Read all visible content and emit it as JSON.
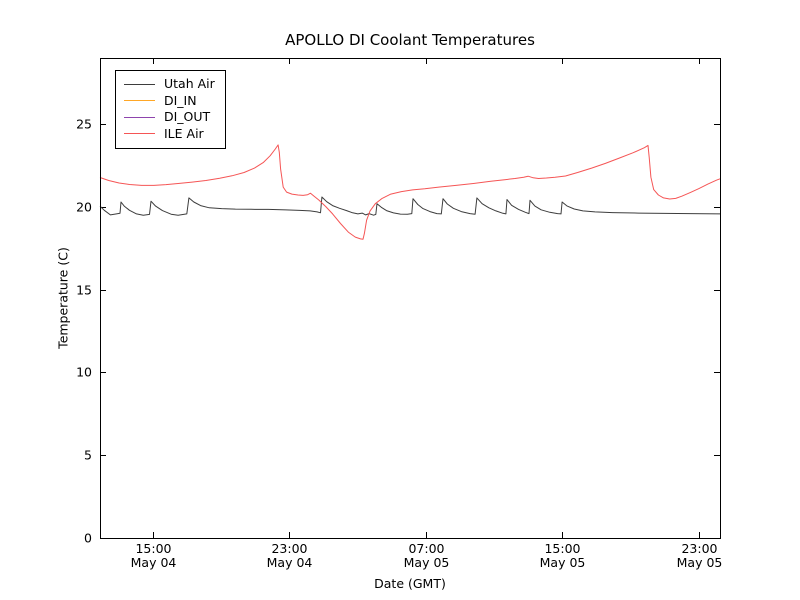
{
  "chart_data": {
    "type": "line",
    "title": "APOLLO DI Coolant Temperatures",
    "xlabel": "Date (GMT)",
    "ylabel": "Temperature (C)",
    "grid": false,
    "legend_position": "upper left",
    "background_color": "#ffffff",
    "axis_color": "#000000",
    "x_axis_note": "x values are hours offset; 0 = May 04 12:00 GMT",
    "xlim": [
      -0.1,
      36.25
    ],
    "ylim": [
      0,
      29
    ],
    "yticks": [
      0,
      5,
      10,
      15,
      20,
      25
    ],
    "xticks": [
      {
        "x": 3,
        "time": "15:00",
        "date": "May 04"
      },
      {
        "x": 11,
        "time": "23:00",
        "date": "May 04"
      },
      {
        "x": 19,
        "time": "07:00",
        "date": "May 05"
      },
      {
        "x": 27,
        "time": "15:00",
        "date": "May 05"
      },
      {
        "x": 35,
        "time": "23:00",
        "date": "May 05"
      }
    ],
    "series": [
      {
        "name": "Utah Air",
        "color": "#3d3d3d",
        "points": [
          [
            -0.1,
            20.05
          ],
          [
            0.15,
            19.8
          ],
          [
            0.51,
            19.52
          ],
          [
            0.87,
            19.58
          ],
          [
            1.07,
            19.62
          ],
          [
            1.13,
            20.3
          ],
          [
            1.32,
            20.05
          ],
          [
            1.63,
            19.8
          ],
          [
            2.04,
            19.58
          ],
          [
            2.44,
            19.5
          ],
          [
            2.8,
            19.55
          ],
          [
            2.89,
            20.35
          ],
          [
            3.16,
            20.05
          ],
          [
            3.56,
            19.78
          ],
          [
            4.07,
            19.56
          ],
          [
            4.48,
            19.5
          ],
          [
            4.99,
            19.58
          ],
          [
            5.11,
            20.55
          ],
          [
            5.4,
            20.3
          ],
          [
            5.8,
            20.08
          ],
          [
            6.31,
            19.95
          ],
          [
            7.03,
            19.9
          ],
          [
            7.84,
            19.87
          ],
          [
            8.76,
            19.86
          ],
          [
            9.78,
            19.85
          ],
          [
            10.79,
            19.82
          ],
          [
            11.61,
            19.79
          ],
          [
            12.22,
            19.76
          ],
          [
            12.63,
            19.7
          ],
          [
            12.83,
            19.65
          ],
          [
            12.91,
            20.6
          ],
          [
            13.19,
            20.32
          ],
          [
            13.54,
            20.08
          ],
          [
            13.95,
            19.92
          ],
          [
            14.36,
            19.78
          ],
          [
            14.71,
            19.65
          ],
          [
            15.02,
            19.58
          ],
          [
            15.27,
            19.63
          ],
          [
            15.48,
            19.52
          ],
          [
            15.68,
            19.6
          ],
          [
            15.94,
            19.5
          ],
          [
            16.07,
            19.55
          ],
          [
            16.14,
            20.2
          ],
          [
            16.39,
            19.98
          ],
          [
            16.7,
            19.78
          ],
          [
            17.11,
            19.64
          ],
          [
            17.51,
            19.57
          ],
          [
            17.92,
            19.56
          ],
          [
            18.18,
            19.6
          ],
          [
            18.25,
            20.5
          ],
          [
            18.53,
            20.15
          ],
          [
            18.84,
            19.9
          ],
          [
            19.25,
            19.72
          ],
          [
            19.65,
            19.6
          ],
          [
            19.91,
            19.58
          ],
          [
            20.01,
            20.5
          ],
          [
            20.26,
            20.18
          ],
          [
            20.62,
            19.92
          ],
          [
            21.08,
            19.72
          ],
          [
            21.59,
            19.6
          ],
          [
            21.89,
            19.56
          ],
          [
            22.0,
            20.55
          ],
          [
            22.3,
            20.2
          ],
          [
            22.7,
            19.95
          ],
          [
            23.11,
            19.76
          ],
          [
            23.52,
            19.62
          ],
          [
            23.7,
            19.58
          ],
          [
            23.76,
            20.45
          ],
          [
            24.03,
            20.1
          ],
          [
            24.44,
            19.85
          ],
          [
            24.84,
            19.68
          ],
          [
            25.05,
            19.6
          ],
          [
            25.11,
            20.4
          ],
          [
            25.4,
            20.05
          ],
          [
            25.76,
            19.83
          ],
          [
            26.27,
            19.68
          ],
          [
            26.73,
            19.6
          ],
          [
            26.93,
            19.58
          ],
          [
            26.99,
            20.3
          ],
          [
            27.29,
            20.05
          ],
          [
            27.7,
            19.88
          ],
          [
            28.21,
            19.76
          ],
          [
            28.92,
            19.7
          ],
          [
            29.94,
            19.66
          ],
          [
            31.47,
            19.63
          ],
          [
            33.0,
            19.61
          ],
          [
            34.52,
            19.6
          ],
          [
            36.25,
            19.58
          ]
        ]
      },
      {
        "name": "DI_IN",
        "color": "#ffa726",
        "points": []
      },
      {
        "name": "DI_OUT",
        "color": "#8e44ad",
        "points": []
      },
      {
        "name": "ILE Air",
        "color": "#f55555",
        "points": [
          [
            -0.1,
            21.78
          ],
          [
            0.41,
            21.6
          ],
          [
            1.02,
            21.45
          ],
          [
            1.63,
            21.36
          ],
          [
            2.34,
            21.3
          ],
          [
            3.06,
            21.3
          ],
          [
            3.77,
            21.35
          ],
          [
            4.48,
            21.42
          ],
          [
            5.3,
            21.5
          ],
          [
            6.11,
            21.6
          ],
          [
            6.92,
            21.73
          ],
          [
            7.64,
            21.88
          ],
          [
            8.35,
            22.08
          ],
          [
            8.96,
            22.35
          ],
          [
            9.47,
            22.68
          ],
          [
            9.88,
            23.1
          ],
          [
            10.18,
            23.5
          ],
          [
            10.34,
            23.75
          ],
          [
            10.41,
            23.3
          ],
          [
            10.49,
            22.3
          ],
          [
            10.64,
            21.2
          ],
          [
            10.84,
            20.9
          ],
          [
            11.15,
            20.78
          ],
          [
            11.51,
            20.72
          ],
          [
            11.81,
            20.7
          ],
          [
            12.07,
            20.74
          ],
          [
            12.24,
            20.83
          ],
          [
            12.42,
            20.68
          ],
          [
            12.73,
            20.42
          ],
          [
            13.14,
            20.02
          ],
          [
            13.54,
            19.58
          ],
          [
            14.0,
            19.0
          ],
          [
            14.46,
            18.48
          ],
          [
            14.87,
            18.18
          ],
          [
            15.17,
            18.07
          ],
          [
            15.32,
            18.05
          ],
          [
            15.4,
            18.4
          ],
          [
            15.53,
            19.2
          ],
          [
            15.73,
            19.75
          ],
          [
            16.04,
            20.2
          ],
          [
            16.44,
            20.52
          ],
          [
            16.95,
            20.78
          ],
          [
            17.57,
            20.93
          ],
          [
            18.23,
            21.03
          ],
          [
            18.94,
            21.1
          ],
          [
            19.76,
            21.2
          ],
          [
            20.77,
            21.3
          ],
          [
            21.79,
            21.42
          ],
          [
            22.81,
            21.55
          ],
          [
            23.62,
            21.65
          ],
          [
            24.23,
            21.72
          ],
          [
            24.74,
            21.8
          ],
          [
            25.0,
            21.86
          ],
          [
            25.3,
            21.76
          ],
          [
            25.61,
            21.72
          ],
          [
            26.07,
            21.75
          ],
          [
            26.58,
            21.8
          ],
          [
            27.19,
            21.87
          ],
          [
            27.9,
            22.08
          ],
          [
            28.72,
            22.35
          ],
          [
            29.53,
            22.63
          ],
          [
            30.34,
            22.95
          ],
          [
            31.16,
            23.28
          ],
          [
            31.82,
            23.58
          ],
          [
            32.03,
            23.72
          ],
          [
            32.1,
            23.0
          ],
          [
            32.2,
            21.8
          ],
          [
            32.36,
            21.05
          ],
          [
            32.64,
            20.72
          ],
          [
            32.94,
            20.55
          ],
          [
            33.3,
            20.48
          ],
          [
            33.65,
            20.52
          ],
          [
            34.01,
            20.65
          ],
          [
            34.52,
            20.88
          ],
          [
            35.03,
            21.12
          ],
          [
            35.54,
            21.38
          ],
          [
            36.04,
            21.62
          ],
          [
            36.25,
            21.7
          ]
        ]
      }
    ]
  }
}
